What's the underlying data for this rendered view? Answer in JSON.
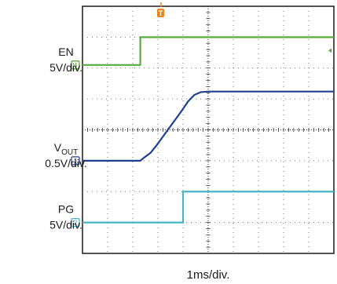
{
  "chart_data": {
    "type": "line",
    "xlabel": "1ms/div.",
    "xlim": [
      0,
      10
    ],
    "ylim": [
      -4,
      4
    ],
    "grid": true,
    "trigger_marker": {
      "label": "T",
      "x": 1,
      "color": "#e8841a"
    },
    "series": [
      {
        "label": "EN",
        "scale": "5V/div.",
        "channel": "4",
        "color": "#56ad3a",
        "x": [
          0,
          2.3,
          2.3,
          7.9,
          10
        ],
        "y": [
          2.1,
          2.1,
          3.0,
          3.0,
          3.0
        ]
      },
      {
        "label_main": "V",
        "label_sub": "OUT",
        "scale": "0.5V/div.",
        "channel": "1",
        "color": "#1f3f8f",
        "x": [
          0,
          2.3,
          2.45,
          2.7,
          2.95,
          3.2,
          3.45,
          3.7,
          3.95,
          4.2,
          4.45,
          4.7,
          5.0,
          10
        ],
        "y": [
          -1.0,
          -1.0,
          -0.9,
          -0.75,
          -0.5,
          -0.22,
          0.06,
          0.34,
          0.62,
          0.92,
          1.13,
          1.22,
          1.24,
          1.24
        ]
      },
      {
        "label": "PG",
        "scale": "5V/div.",
        "channel": "2",
        "color": "#45b5c5",
        "x": [
          0,
          4.0,
          4.0,
          10
        ],
        "y": [
          -3.0,
          -3.0,
          -2.0,
          -2.0
        ]
      }
    ]
  }
}
